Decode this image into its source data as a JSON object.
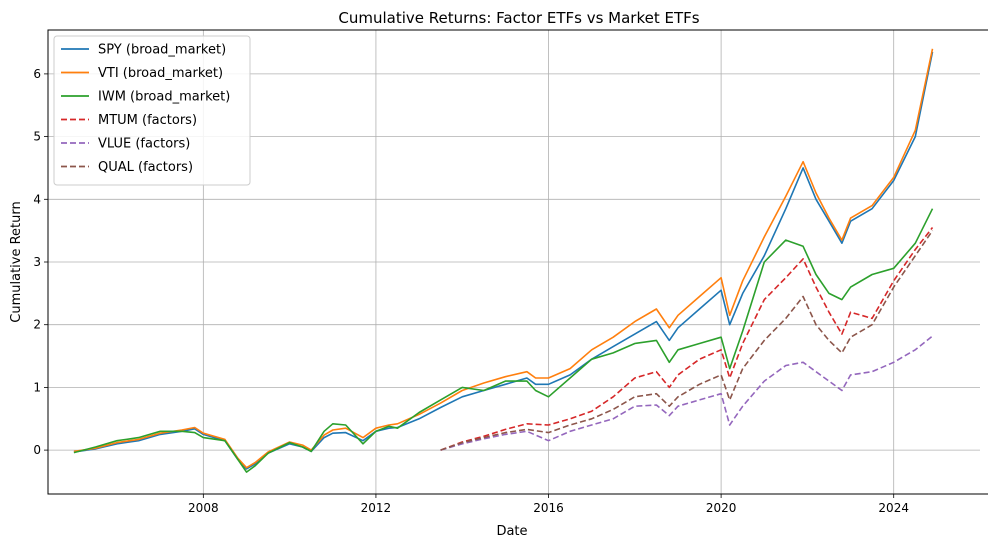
{
  "chart_data": {
    "type": "line",
    "title": "Cumulative Returns: Factor ETFs vs Market ETFs",
    "xlabel": "Date",
    "ylabel": "Cumulative Return",
    "xlim": [
      2004.4,
      2026.0
    ],
    "ylim": [
      -0.7,
      6.7
    ],
    "xticks": [
      {
        "value": 2008,
        "label": "2008"
      },
      {
        "value": 2012,
        "label": "2012"
      },
      {
        "value": 2016,
        "label": "2016"
      },
      {
        "value": 2020,
        "label": "2020"
      },
      {
        "value": 2024,
        "label": "2024"
      }
    ],
    "yticks": [
      {
        "value": 0,
        "label": "0"
      },
      {
        "value": 1,
        "label": "1"
      },
      {
        "value": 2,
        "label": "2"
      },
      {
        "value": 3,
        "label": "3"
      },
      {
        "value": 4,
        "label": "4"
      },
      {
        "value": 5,
        "label": "5"
      },
      {
        "value": 6,
        "label": "6"
      }
    ],
    "grid": true,
    "legend_position": "top-left",
    "series": [
      {
        "name": "SPY (broad_market)",
        "color": "#1f77b4",
        "dash": "solid",
        "x": [
          2005.0,
          2005.5,
          2006.0,
          2006.5,
          2007.0,
          2007.5,
          2007.8,
          2008.0,
          2008.5,
          2008.8,
          2009.0,
          2009.2,
          2009.5,
          2010.0,
          2010.3,
          2010.5,
          2010.8,
          2011.0,
          2011.3,
          2011.7,
          2012.0,
          2012.3,
          2012.5,
          2013.0,
          2013.5,
          2014.0,
          2014.5,
          2015.0,
          2015.5,
          2015.7,
          2016.0,
          2016.5,
          2017.0,
          2017.5,
          2018.0,
          2018.5,
          2018.8,
          2019.0,
          2019.5,
          2020.0,
          2020.2,
          2020.5,
          2021.0,
          2021.5,
          2021.9,
          2022.2,
          2022.5,
          2022.8,
          2023.0,
          2023.5,
          2024.0,
          2024.5,
          2024.9
        ],
        "y": [
          -0.03,
          0.02,
          0.1,
          0.15,
          0.25,
          0.3,
          0.34,
          0.25,
          0.15,
          -0.15,
          -0.3,
          -0.22,
          -0.05,
          0.1,
          0.05,
          -0.02,
          0.2,
          0.27,
          0.28,
          0.15,
          0.3,
          0.35,
          0.36,
          0.5,
          0.68,
          0.85,
          0.95,
          1.05,
          1.15,
          1.05,
          1.05,
          1.2,
          1.45,
          1.65,
          1.85,
          2.05,
          1.75,
          1.95,
          2.25,
          2.55,
          2.0,
          2.5,
          3.1,
          3.85,
          4.5,
          4.0,
          3.65,
          3.3,
          3.65,
          3.85,
          4.3,
          5.0,
          6.35
        ]
      },
      {
        "name": "VTI (broad_market)",
        "color": "#ff7f0e",
        "dash": "solid",
        "x": [
          2005.0,
          2005.5,
          2006.0,
          2006.5,
          2007.0,
          2007.5,
          2007.8,
          2008.0,
          2008.5,
          2008.8,
          2009.0,
          2009.2,
          2009.5,
          2010.0,
          2010.3,
          2010.5,
          2010.8,
          2011.0,
          2011.3,
          2011.7,
          2012.0,
          2012.3,
          2012.5,
          2013.0,
          2013.5,
          2014.0,
          2014.5,
          2015.0,
          2015.5,
          2015.7,
          2016.0,
          2016.5,
          2017.0,
          2017.5,
          2018.0,
          2018.5,
          2018.8,
          2019.0,
          2019.5,
          2020.0,
          2020.2,
          2020.5,
          2021.0,
          2021.5,
          2021.9,
          2022.2,
          2022.5,
          2022.8,
          2023.0,
          2023.5,
          2024.0,
          2024.5,
          2024.9
        ],
        "y": [
          -0.02,
          0.03,
          0.12,
          0.17,
          0.27,
          0.32,
          0.36,
          0.27,
          0.17,
          -0.13,
          -0.28,
          -0.2,
          -0.03,
          0.13,
          0.08,
          0.0,
          0.24,
          0.32,
          0.35,
          0.2,
          0.35,
          0.4,
          0.42,
          0.57,
          0.75,
          0.95,
          1.07,
          1.17,
          1.25,
          1.15,
          1.15,
          1.3,
          1.6,
          1.8,
          2.05,
          2.25,
          1.95,
          2.15,
          2.45,
          2.75,
          2.15,
          2.7,
          3.4,
          4.05,
          4.6,
          4.1,
          3.7,
          3.35,
          3.7,
          3.9,
          4.35,
          5.1,
          6.4
        ]
      },
      {
        "name": "IWM (broad_market)",
        "color": "#2ca02c",
        "dash": "solid",
        "x": [
          2005.0,
          2005.5,
          2006.0,
          2006.5,
          2007.0,
          2007.5,
          2007.8,
          2008.0,
          2008.5,
          2008.8,
          2009.0,
          2009.2,
          2009.5,
          2010.0,
          2010.3,
          2010.5,
          2010.8,
          2011.0,
          2011.3,
          2011.7,
          2012.0,
          2012.3,
          2012.5,
          2013.0,
          2013.5,
          2014.0,
          2014.5,
          2015.0,
          2015.5,
          2015.7,
          2016.0,
          2016.5,
          2017.0,
          2017.5,
          2018.0,
          2018.5,
          2018.8,
          2019.0,
          2019.5,
          2020.0,
          2020.2,
          2020.5,
          2021.0,
          2021.5,
          2021.9,
          2022.2,
          2022.5,
          2022.8,
          2023.0,
          2023.5,
          2024.0,
          2024.5,
          2024.9
        ],
        "y": [
          -0.04,
          0.05,
          0.15,
          0.2,
          0.3,
          0.3,
          0.28,
          0.2,
          0.15,
          -0.15,
          -0.35,
          -0.25,
          -0.05,
          0.12,
          0.05,
          -0.02,
          0.3,
          0.42,
          0.4,
          0.1,
          0.3,
          0.38,
          0.35,
          0.6,
          0.8,
          1.0,
          0.95,
          1.1,
          1.1,
          0.95,
          0.85,
          1.15,
          1.45,
          1.55,
          1.7,
          1.75,
          1.4,
          1.6,
          1.7,
          1.8,
          1.3,
          1.9,
          3.0,
          3.35,
          3.25,
          2.8,
          2.5,
          2.4,
          2.6,
          2.8,
          2.9,
          3.3,
          3.85
        ]
      },
      {
        "name": "MTUM (factors)",
        "color": "#d62728",
        "dash": "dashed",
        "x": [
          2013.5,
          2014.0,
          2014.5,
          2015.0,
          2015.5,
          2016.0,
          2016.5,
          2017.0,
          2017.5,
          2018.0,
          2018.5,
          2018.8,
          2019.0,
          2019.5,
          2020.0,
          2020.2,
          2020.5,
          2021.0,
          2021.5,
          2021.9,
          2022.2,
          2022.5,
          2022.8,
          2023.0,
          2023.5,
          2024.0,
          2024.5,
          2024.9
        ],
        "y": [
          0.0,
          0.13,
          0.22,
          0.33,
          0.42,
          0.4,
          0.5,
          0.62,
          0.85,
          1.15,
          1.25,
          1.0,
          1.2,
          1.45,
          1.6,
          1.15,
          1.7,
          2.4,
          2.75,
          3.05,
          2.6,
          2.2,
          1.85,
          2.2,
          2.1,
          2.7,
          3.2,
          3.55
        ]
      },
      {
        "name": "VLUE (factors)",
        "color": "#9467bd",
        "dash": "dashed",
        "x": [
          2013.5,
          2014.0,
          2014.5,
          2015.0,
          2015.5,
          2016.0,
          2016.5,
          2017.0,
          2017.5,
          2018.0,
          2018.5,
          2018.8,
          2019.0,
          2019.5,
          2020.0,
          2020.2,
          2020.5,
          2021.0,
          2021.5,
          2021.9,
          2022.2,
          2022.5,
          2022.8,
          2023.0,
          2023.5,
          2024.0,
          2024.5,
          2024.9
        ],
        "y": [
          0.0,
          0.1,
          0.18,
          0.25,
          0.3,
          0.15,
          0.3,
          0.4,
          0.5,
          0.7,
          0.72,
          0.55,
          0.7,
          0.8,
          0.9,
          0.4,
          0.7,
          1.1,
          1.35,
          1.4,
          1.25,
          1.1,
          0.95,
          1.2,
          1.25,
          1.4,
          1.6,
          1.82
        ]
      },
      {
        "name": "QUAL (factors)",
        "color": "#8c564b",
        "dash": "dashed",
        "x": [
          2013.5,
          2014.0,
          2014.5,
          2015.0,
          2015.5,
          2016.0,
          2016.5,
          2017.0,
          2017.5,
          2018.0,
          2018.5,
          2018.8,
          2019.0,
          2019.5,
          2020.0,
          2020.2,
          2020.5,
          2021.0,
          2021.5,
          2021.9,
          2022.2,
          2022.5,
          2022.8,
          2023.0,
          2023.5,
          2024.0,
          2024.5,
          2024.9
        ],
        "y": [
          0.0,
          0.12,
          0.2,
          0.28,
          0.33,
          0.28,
          0.4,
          0.5,
          0.65,
          0.85,
          0.9,
          0.7,
          0.85,
          1.05,
          1.2,
          0.8,
          1.3,
          1.75,
          2.1,
          2.45,
          2.0,
          1.75,
          1.55,
          1.8,
          2.0,
          2.6,
          3.1,
          3.5
        ]
      }
    ]
  }
}
